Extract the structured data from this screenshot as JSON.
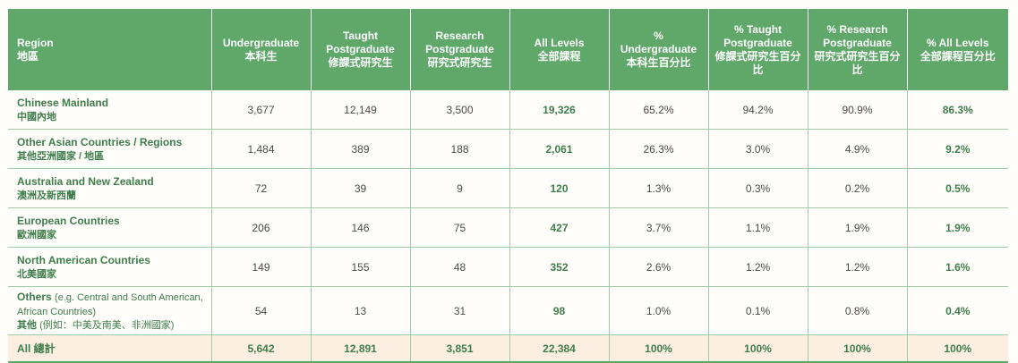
{
  "headers": {
    "region": {
      "en": "Region",
      "zh": "地區"
    },
    "cols": [
      {
        "en": "Undergraduate",
        "zh": "本科生"
      },
      {
        "en": "Taught Postgraduate",
        "zh": "修課式研究生"
      },
      {
        "en": "Research Postgraduate",
        "zh": "研究式研究生"
      },
      {
        "en": "All Levels",
        "zh": "全部課程"
      },
      {
        "en": "% Undergraduate",
        "zh": "本科生百分比"
      },
      {
        "en": "% Taught Postgraduate",
        "zh": "修課式研究生百分比"
      },
      {
        "en": "% Research Postgraduate",
        "zh": "研究式研究生百分比"
      },
      {
        "en": "% All Levels",
        "zh": "全部課程百分比"
      }
    ]
  },
  "rows": [
    {
      "en": "Chinese Mainland",
      "zh": "中國內地",
      "note": "",
      "zh_note": "",
      "values": [
        "3,677",
        "12,149",
        "3,500",
        "19,326",
        "65.2%",
        "94.2%",
        "90.9%",
        "86.3%"
      ]
    },
    {
      "en": "Other Asian Countries / Regions",
      "zh": "其他亞洲國家 / 地區",
      "note": "",
      "zh_note": "",
      "values": [
        "1,484",
        "389",
        "188",
        "2,061",
        "26.3%",
        "3.0%",
        "4.9%",
        "9.2%"
      ]
    },
    {
      "en": "Australia and New Zealand",
      "zh": "澳洲及新西蘭",
      "note": "",
      "zh_note": "",
      "values": [
        "72",
        "39",
        "9",
        "120",
        "1.3%",
        "0.3%",
        "0.2%",
        "0.5%"
      ]
    },
    {
      "en": "European Countries",
      "zh": "歐洲國家",
      "note": "",
      "zh_note": "",
      "values": [
        "206",
        "146",
        "75",
        "427",
        "3.7%",
        "1.1%",
        "1.9%",
        "1.9%"
      ]
    },
    {
      "en": "North American Countries",
      "zh": "北美國家",
      "note": "",
      "zh_note": "",
      "values": [
        "149",
        "155",
        "48",
        "352",
        "2.6%",
        "1.2%",
        "1.2%",
        "1.6%"
      ]
    },
    {
      "en": "Others",
      "zh": "其他",
      "note": "(e.g. Central and South American, African Countries)",
      "zh_note": "(例如：中美及南美、非洲國家)",
      "values": [
        "54",
        "13",
        "31",
        "98",
        "1.0%",
        "0.1%",
        "0.8%",
        "0.4%"
      ]
    }
  ],
  "total": {
    "label": "All 總計",
    "values": [
      "5,642",
      "12,891",
      "3,851",
      "22,384",
      "100%",
      "100%",
      "100%",
      "100%"
    ]
  },
  "colors": {
    "header_bg": "#5fa86a",
    "accent_text": "#3f7d4c",
    "total_bg": "#fcefe2"
  }
}
